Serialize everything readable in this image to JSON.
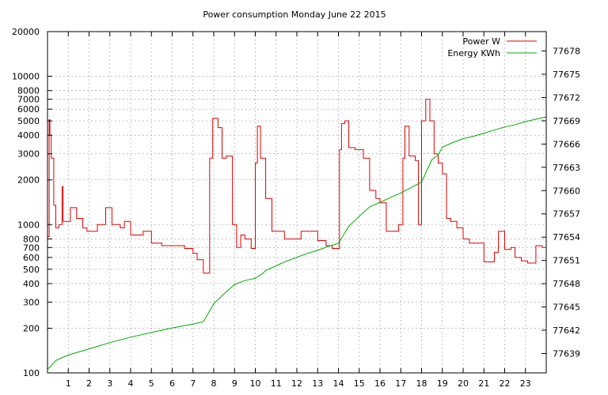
{
  "chart_data": {
    "type": "line",
    "title": "Power consumption Monday June 22 2015",
    "xlabel": "",
    "ylabel": "",
    "xlim": [
      0,
      24
    ],
    "x_ticks": [
      "1",
      "2",
      "3",
      "4",
      "5",
      "6",
      "7",
      "8",
      "9",
      "10",
      "11",
      "12",
      "13",
      "14",
      "15",
      "16",
      "17",
      "18",
      "19",
      "20",
      "21",
      "22",
      "23"
    ],
    "y_left": {
      "scale": "log",
      "range": [
        100,
        20000
      ],
      "ticks": [
        100,
        200,
        300,
        400,
        500,
        600,
        700,
        800,
        1000,
        2000,
        3000,
        4000,
        5000,
        6000,
        7000,
        8000,
        10000,
        20000
      ],
      "tick_labels": [
        "100",
        "200",
        "300",
        "400",
        "500",
        "600",
        "700",
        "800",
        "1000",
        "2000",
        "3000",
        "4000",
        "5000",
        "6000",
        "7000",
        "8000",
        "10000",
        "20000"
      ]
    },
    "y_right": {
      "scale": "linear",
      "range": [
        77636.5,
        77680.5
      ],
      "ticks": [
        77639,
        77642,
        77645,
        77648,
        77651,
        77654,
        77657,
        77660,
        77663,
        77666,
        77669,
        77672,
        77675,
        77678
      ],
      "tick_labels": [
        "77639",
        "77642",
        "77645",
        "77648",
        "77651",
        "77654",
        "77657",
        "77660",
        "77663",
        "77666",
        "77669",
        "77672",
        "77675",
        "77678"
      ]
    },
    "grid": true,
    "legend_position": "top-right",
    "series": [
      {
        "name": "Power W",
        "axis": "left",
        "color": "#dd0000",
        "step": true,
        "points": [
          [
            0.0,
            830
          ],
          [
            0.08,
            5100
          ],
          [
            0.12,
            4000
          ],
          [
            0.18,
            2800
          ],
          [
            0.3,
            1350
          ],
          [
            0.4,
            950
          ],
          [
            0.55,
            1000
          ],
          [
            0.7,
            1800
          ],
          [
            0.75,
            1050
          ],
          [
            1.1,
            1300
          ],
          [
            1.4,
            1100
          ],
          [
            1.7,
            950
          ],
          [
            1.9,
            900
          ],
          [
            2.4,
            1000
          ],
          [
            2.8,
            1300
          ],
          [
            3.1,
            1000
          ],
          [
            3.5,
            950
          ],
          [
            3.7,
            1050
          ],
          [
            4.0,
            850
          ],
          [
            4.4,
            850
          ],
          [
            4.6,
            900
          ],
          [
            5.0,
            750
          ],
          [
            5.5,
            720
          ],
          [
            6.0,
            720
          ],
          [
            6.4,
            720
          ],
          [
            6.6,
            690
          ],
          [
            7.0,
            640
          ],
          [
            7.05,
            640
          ],
          [
            7.2,
            580
          ],
          [
            7.5,
            470
          ],
          [
            7.8,
            2800
          ],
          [
            7.95,
            5200
          ],
          [
            8.2,
            4500
          ],
          [
            8.4,
            2800
          ],
          [
            8.6,
            2900
          ],
          [
            8.9,
            1000
          ],
          [
            9.1,
            700
          ],
          [
            9.3,
            850
          ],
          [
            9.5,
            800
          ],
          [
            9.8,
            690
          ],
          [
            10.0,
            2600
          ],
          [
            10.1,
            4600
          ],
          [
            10.25,
            2800
          ],
          [
            10.5,
            1500
          ],
          [
            10.8,
            900
          ],
          [
            11.1,
            900
          ],
          [
            11.4,
            800
          ],
          [
            11.9,
            800
          ],
          [
            12.2,
            900
          ],
          [
            12.6,
            900
          ],
          [
            13.0,
            780
          ],
          [
            13.4,
            720
          ],
          [
            13.7,
            690
          ],
          [
            13.9,
            690
          ],
          [
            14.05,
            3200
          ],
          [
            14.15,
            4800
          ],
          [
            14.3,
            5000
          ],
          [
            14.5,
            3300
          ],
          [
            14.8,
            3200
          ],
          [
            15.0,
            3200
          ],
          [
            15.2,
            2800
          ],
          [
            15.5,
            1700
          ],
          [
            15.8,
            1500
          ],
          [
            16.0,
            1400
          ],
          [
            16.3,
            900
          ],
          [
            16.6,
            900
          ],
          [
            16.9,
            1000
          ],
          [
            17.1,
            2800
          ],
          [
            17.2,
            4600
          ],
          [
            17.4,
            2900
          ],
          [
            17.7,
            2700
          ],
          [
            17.85,
            1000
          ],
          [
            18.0,
            5000
          ],
          [
            18.2,
            7000
          ],
          [
            18.4,
            5000
          ],
          [
            18.6,
            3000
          ],
          [
            18.8,
            2600
          ],
          [
            19.0,
            2200
          ],
          [
            19.2,
            1100
          ],
          [
            19.4,
            1050
          ],
          [
            19.7,
            950
          ],
          [
            20.0,
            800
          ],
          [
            20.3,
            750
          ],
          [
            20.7,
            750
          ],
          [
            21.0,
            560
          ],
          [
            21.2,
            560
          ],
          [
            21.5,
            650
          ],
          [
            21.7,
            900
          ],
          [
            22.0,
            680
          ],
          [
            22.3,
            700
          ],
          [
            22.5,
            600
          ],
          [
            22.8,
            570
          ],
          [
            23.1,
            550
          ],
          [
            23.5,
            720
          ],
          [
            23.8,
            700
          ],
          [
            24.0,
            700
          ]
        ]
      },
      {
        "name": "Energy KWh",
        "axis": "right",
        "color": "#00aa00",
        "step": false,
        "points": [
          [
            0.0,
            77637.0
          ],
          [
            0.1,
            77637.2
          ],
          [
            0.4,
            77638.1
          ],
          [
            1.0,
            77638.8
          ],
          [
            2.0,
            77639.6
          ],
          [
            3.0,
            77640.4
          ],
          [
            4.0,
            77641.1
          ],
          [
            5.0,
            77641.7
          ],
          [
            6.0,
            77642.3
          ],
          [
            7.0,
            77642.8
          ],
          [
            7.5,
            77643.1
          ],
          [
            8.0,
            77645.4
          ],
          [
            8.5,
            77646.7
          ],
          [
            9.0,
            77647.9
          ],
          [
            9.5,
            77648.4
          ],
          [
            10.0,
            77648.7
          ],
          [
            10.3,
            77649.2
          ],
          [
            10.5,
            77649.7
          ],
          [
            11.0,
            77650.3
          ],
          [
            11.5,
            77650.9
          ],
          [
            12.0,
            77651.4
          ],
          [
            12.5,
            77651.9
          ],
          [
            13.0,
            77652.3
          ],
          [
            13.5,
            77652.8
          ],
          [
            14.0,
            77653.2
          ],
          [
            14.5,
            77655.4
          ],
          [
            15.0,
            77656.7
          ],
          [
            15.5,
            77657.9
          ],
          [
            16.0,
            77658.5
          ],
          [
            16.5,
            77659.1
          ],
          [
            17.0,
            77659.7
          ],
          [
            17.5,
            77660.4
          ],
          [
            18.0,
            77661.1
          ],
          [
            18.5,
            77664.0
          ],
          [
            18.8,
            77664.6
          ],
          [
            19.0,
            77665.6
          ],
          [
            19.5,
            77666.2
          ],
          [
            20.0,
            77666.7
          ],
          [
            20.5,
            77667.0
          ],
          [
            21.0,
            77667.4
          ],
          [
            21.5,
            77667.8
          ],
          [
            22.0,
            77668.2
          ],
          [
            22.5,
            77668.5
          ],
          [
            23.0,
            77668.9
          ],
          [
            23.5,
            77669.2
          ],
          [
            24.0,
            77669.5
          ]
        ]
      }
    ]
  }
}
